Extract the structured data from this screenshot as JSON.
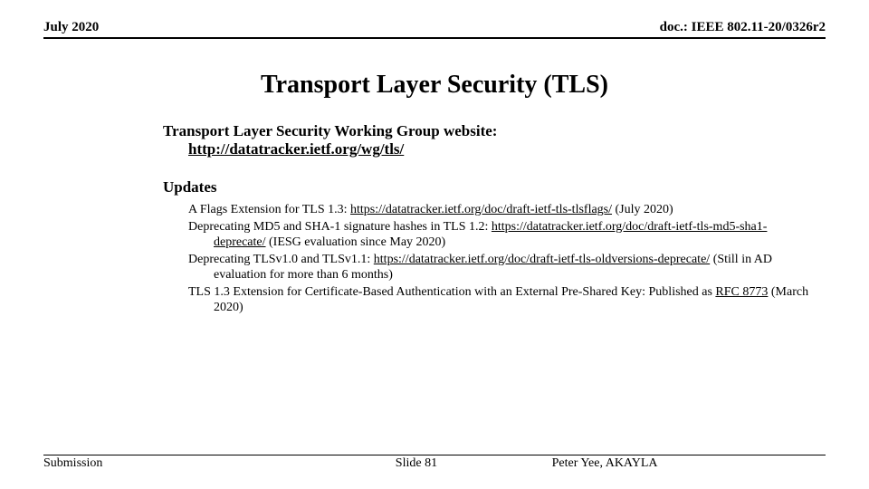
{
  "header": {
    "date": "July 2020",
    "docref": "doc.: IEEE 802.11-20/0326r2"
  },
  "title": "Transport Layer Security (TLS)",
  "wg": {
    "label": "Transport Layer Security Working Group website:",
    "url": "http://datatracker.ietf.org/wg/tls/"
  },
  "updates_label": "Updates",
  "updates": [
    {
      "pre": "A Flags Extension for TLS 1.3: ",
      "link": "https://datatracker.ietf.org/doc/draft-ietf-tls-tlsflags/",
      "post": " (July 2020)"
    },
    {
      "pre": "Deprecating MD5 and SHA-1 signature hashes in TLS 1.2: ",
      "link": "https://datatracker.ietf.org/doc/draft-ietf-tls-md5-sha1-deprecate/",
      "post": " (IESG evaluation since May 2020)"
    },
    {
      "pre": "Deprecating TLSv1.0 and TLSv1.1: ",
      "link": "https://datatracker.ietf.org/doc/draft-ietf-tls-oldversions-deprecate/",
      "post": " (Still in AD evaluation for more than 6 months)"
    },
    {
      "pre": "TLS 1.3 Extension for Certificate-Based Authentication with an External Pre-Shared Key: Published as ",
      "link": "RFC 8773",
      "post": " (March 2020)"
    }
  ],
  "footer": {
    "left": "Submission",
    "center": "Slide 81",
    "right": "Peter Yee, AKAYLA"
  },
  "colors": {
    "background": "#ffffff",
    "text": "#000000",
    "rule": "#000000"
  },
  "typography": {
    "family": "Times New Roman",
    "title_size_pt": 28,
    "section_size_pt": 17,
    "body_size_pt": 14,
    "header_size_pt": 15
  }
}
